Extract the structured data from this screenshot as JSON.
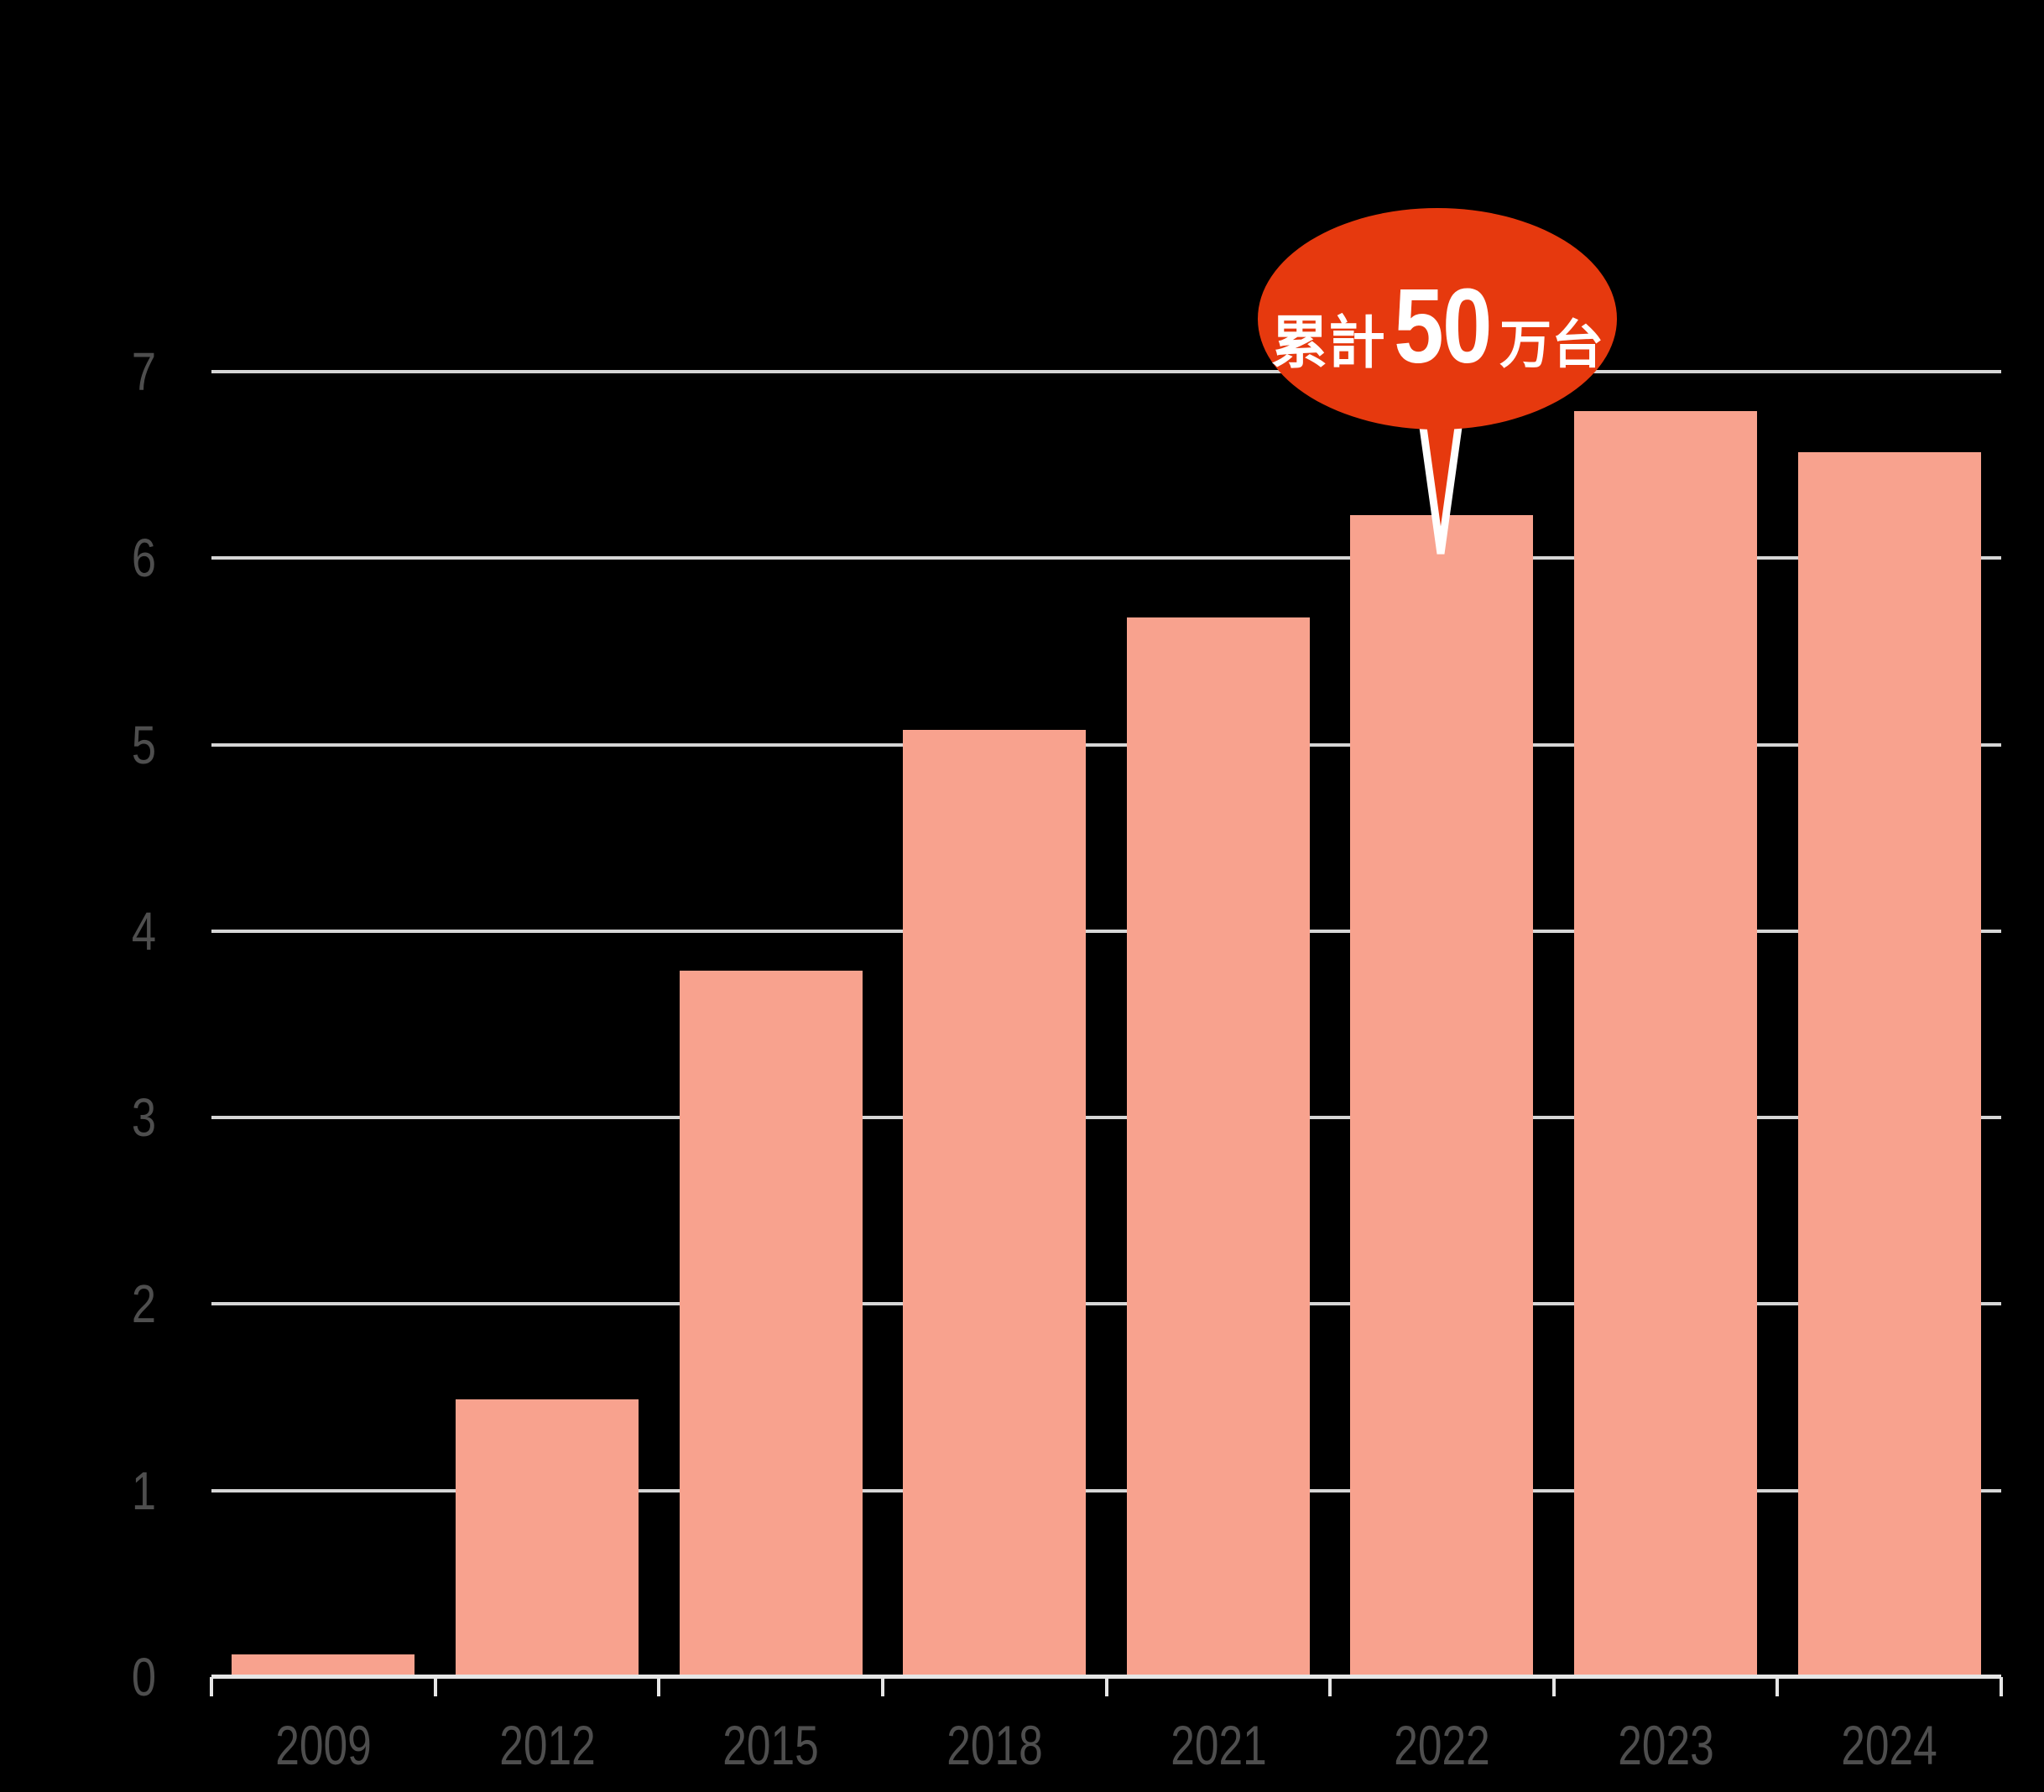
{
  "chart_data": {
    "type": "bar",
    "title": "",
    "xlabel": "",
    "ylabel": "",
    "categories": [
      "2009",
      "2012",
      "2015",
      "2018",
      "2021",
      "2022",
      "2023",
      "2024"
    ],
    "values": [
      0.12,
      1.49,
      3.79,
      5.08,
      5.68,
      6.23,
      6.79,
      6.57
    ],
    "ylim": [
      0,
      7
    ],
    "yticks": [
      0,
      1,
      2,
      3,
      4,
      5,
      6,
      7
    ],
    "grid": true,
    "legend": "none",
    "colors": {
      "background": "#000000",
      "bar": "#f8a28e",
      "gridline": "#d6d6d6",
      "axis_line": "#e6e6e6",
      "tick_label": "#4e4e4e",
      "bubble": "#e6390e",
      "bubble_text": "#ffffff",
      "bubble_tail_outline": "#ffffff"
    },
    "annotation": {
      "text": "累計50万台",
      "prefix": "累計",
      "number": "50",
      "suffix": "万台",
      "target_category": "2022"
    }
  }
}
